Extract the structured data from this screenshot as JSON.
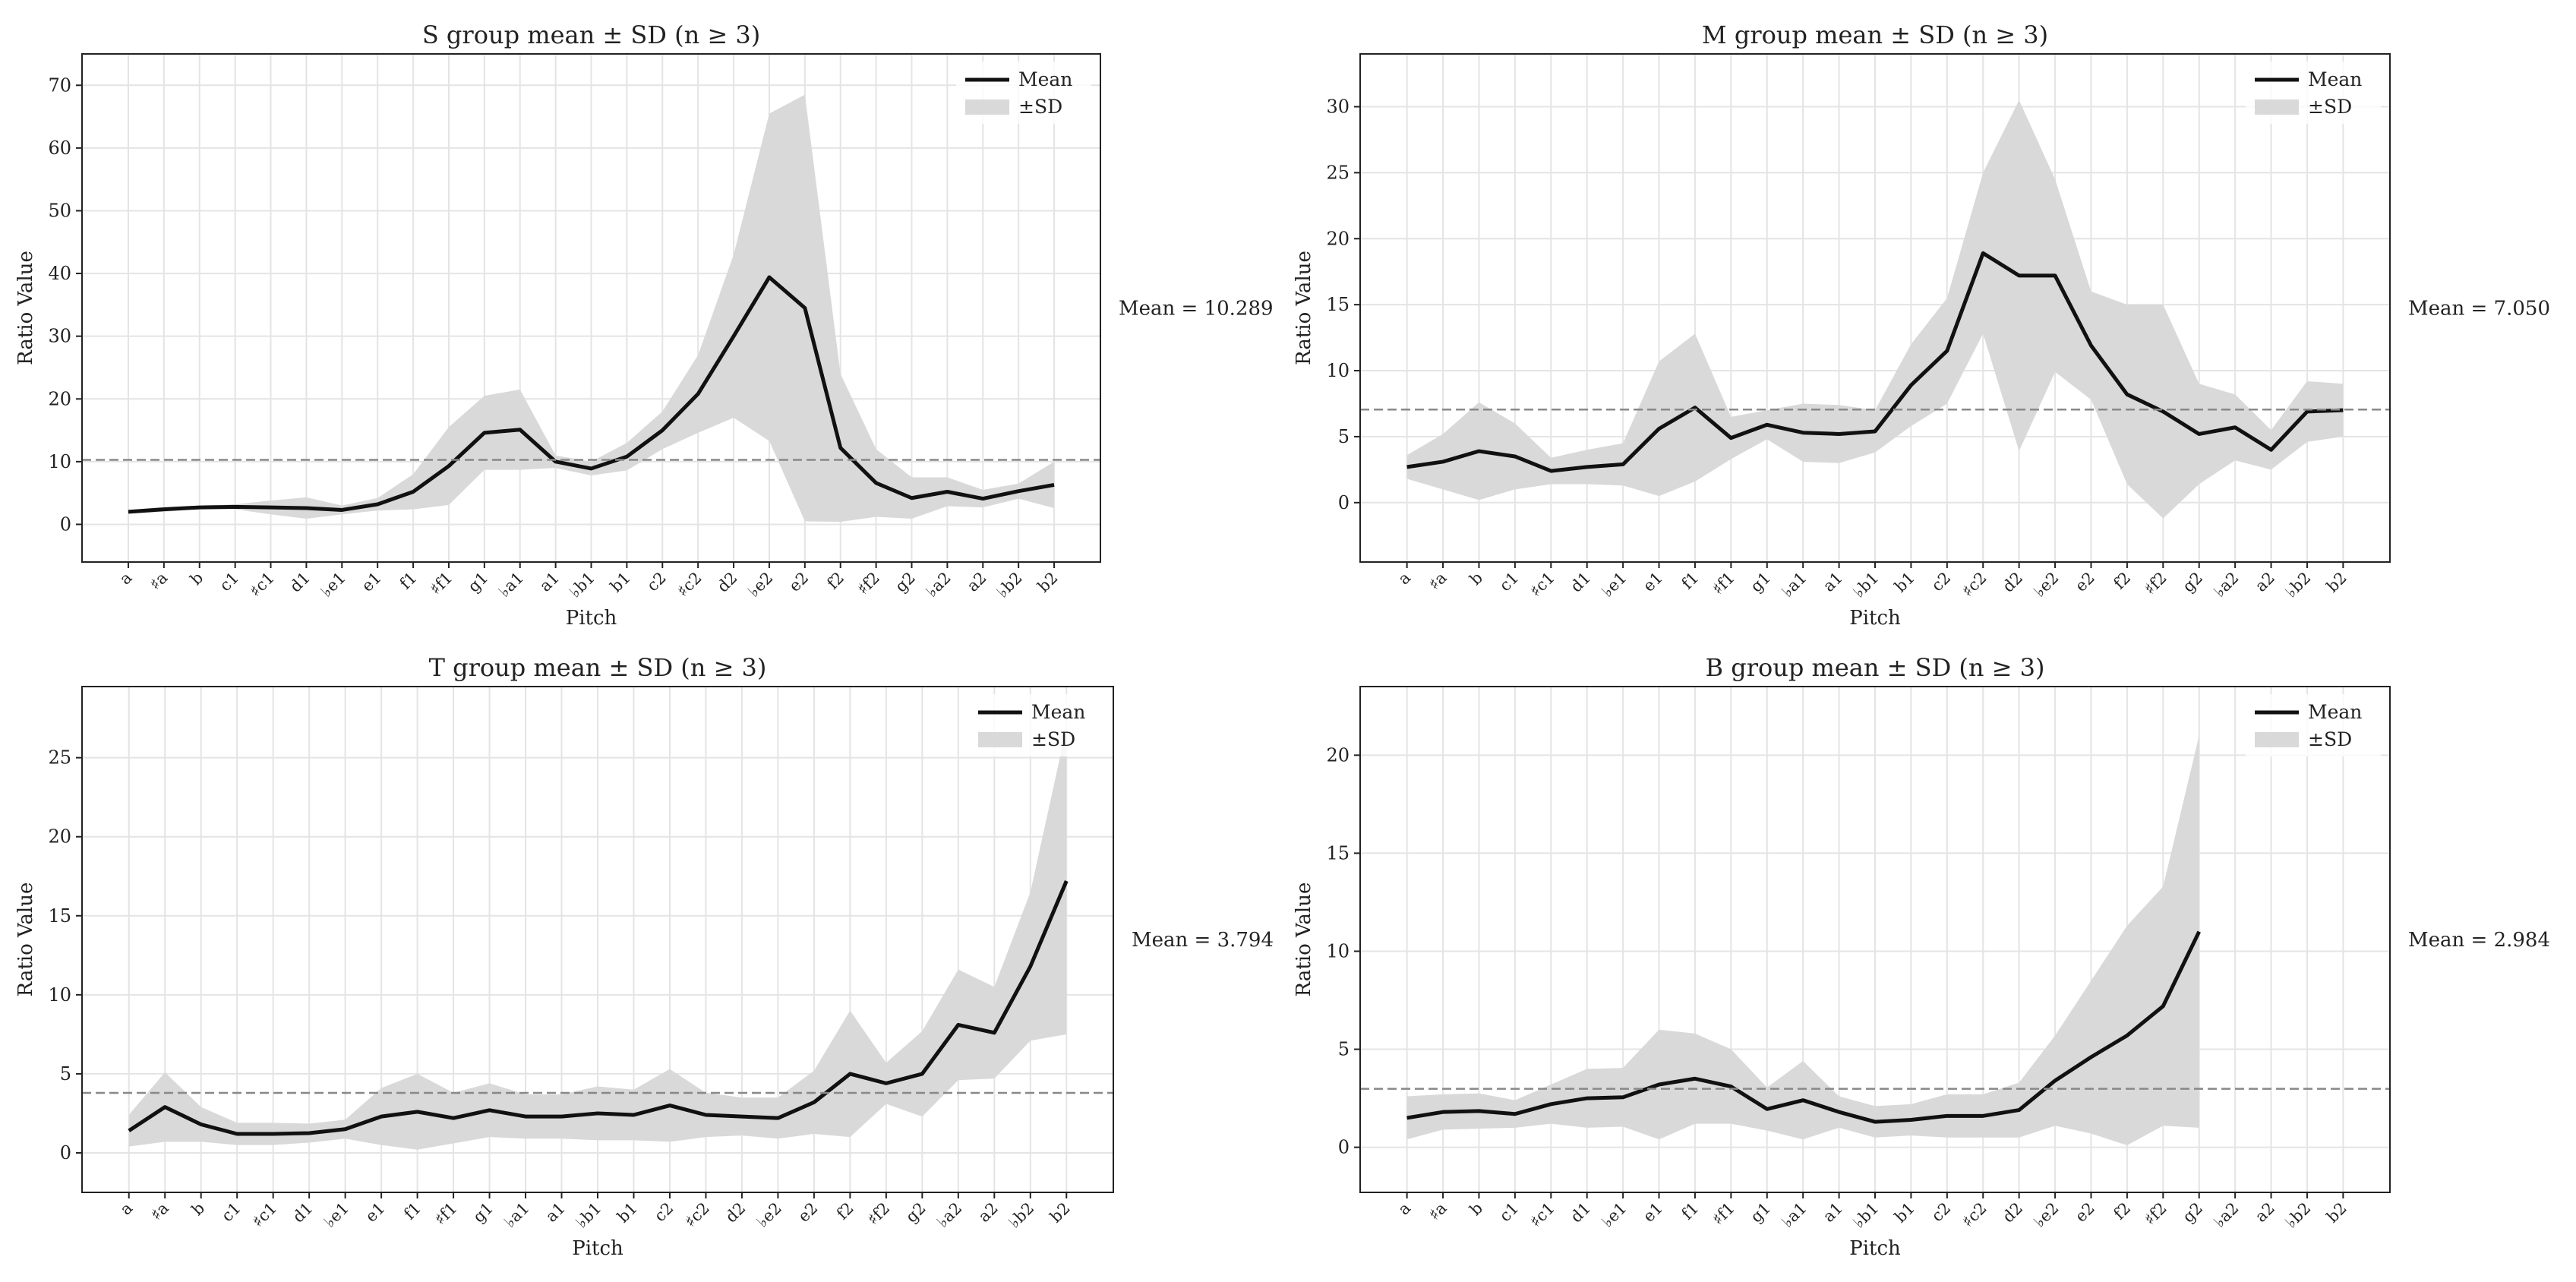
{
  "chart_data": [
    {
      "type": "line",
      "title": "S group mean ± SD (n ≥ 3)",
      "xlabel": "Pitch",
      "ylabel": "Ratio Value",
      "categories": [
        "a",
        "♯a",
        "b",
        "c1",
        "♯c1",
        "d1",
        "♭e1",
        "e1",
        "f1",
        "♯f1",
        "g1",
        "♭a1",
        "a1",
        "♭b1",
        "b1",
        "c2",
        "♯c2",
        "d2",
        "♭e2",
        "e2",
        "f2",
        "♯f2",
        "g2",
        "♭a2",
        "a2",
        "♭b2",
        "b2"
      ],
      "series": [
        {
          "name": "Mean",
          "color": "#111111",
          "values": [
            2.0,
            2.4,
            2.7,
            2.8,
            2.7,
            2.6,
            2.3,
            3.2,
            5.2,
            9.3,
            14.6,
            15.1,
            10.0,
            8.9,
            10.8,
            15.0,
            20.8,
            30.0,
            39.4,
            34.5,
            12.2,
            6.6,
            4.2,
            5.2,
            4.1,
            5.3,
            6.3
          ]
        },
        {
          "name": "±SD",
          "color": "#d9d9d9",
          "values": [
            0.3,
            0.4,
            0.3,
            0.4,
            1.1,
            1.7,
            0.7,
            1.0,
            2.8,
            6.2,
            5.9,
            6.4,
            1.0,
            1.1,
            2.2,
            3.0,
            6.2,
            13.0,
            26.1,
            34.0,
            11.8,
            5.4,
            3.3,
            2.3,
            1.4,
            1.2,
            3.7
          ]
        }
      ],
      "ylim": [
        -6,
        75
      ],
      "yticks": [
        0,
        10,
        20,
        30,
        40,
        50,
        60,
        70
      ],
      "grid": true,
      "legend": "upper right",
      "mean_line": {
        "value": 10.289,
        "label": "Mean = 10.289"
      }
    },
    {
      "type": "line",
      "title": "M group mean ± SD (n ≥ 3)",
      "xlabel": "Pitch",
      "ylabel": "Ratio Value",
      "categories": [
        "a",
        "♯a",
        "b",
        "c1",
        "♯c1",
        "d1",
        "♭e1",
        "e1",
        "f1",
        "♯f1",
        "g1",
        "♭a1",
        "a1",
        "♭b1",
        "b1",
        "c2",
        "♯c2",
        "d2",
        "♭e2",
        "e2",
        "f2",
        "♯f2",
        "g2",
        "♭a2",
        "a2",
        "♭b2",
        "b2"
      ],
      "series": [
        {
          "name": "Mean",
          "color": "#111111",
          "values": [
            2.7,
            3.1,
            3.9,
            3.5,
            2.4,
            2.7,
            2.9,
            5.6,
            7.2,
            4.9,
            5.9,
            5.3,
            5.2,
            5.4,
            8.9,
            11.5,
            18.9,
            17.2,
            17.2,
            11.9,
            8.2,
            6.9,
            5.2,
            5.7,
            4.0,
            6.9,
            7.0
          ]
        },
        {
          "name": "±SD",
          "color": "#d9d9d9",
          "values": [
            0.9,
            2.1,
            3.7,
            2.5,
            1.0,
            1.3,
            1.6,
            5.1,
            5.6,
            1.6,
            1.1,
            2.2,
            2.2,
            1.6,
            3.1,
            4.0,
            6.1,
            13.3,
            7.3,
            4.1,
            6.8,
            8.1,
            3.8,
            2.5,
            1.5,
            2.3,
            2.0
          ]
        }
      ],
      "ylim": [
        -4.5,
        34
      ],
      "yticks": [
        0,
        5,
        10,
        15,
        20,
        25,
        30
      ],
      "grid": true,
      "legend": "upper right",
      "mean_line": {
        "value": 7.05,
        "label": "Mean = 7.050"
      }
    },
    {
      "type": "line",
      "title": "T group mean ± SD (n ≥ 3)",
      "xlabel": "Pitch",
      "ylabel": "Ratio Value",
      "categories": [
        "a",
        "♯a",
        "b",
        "c1",
        "♯c1",
        "d1",
        "♭e1",
        "e1",
        "f1",
        "♯f1",
        "g1",
        "♭a1",
        "a1",
        "♭b1",
        "b1",
        "c2",
        "♯c2",
        "d2",
        "♭e2",
        "e2",
        "f2",
        "♯f2",
        "g2",
        "♭a2",
        "a2",
        "♭b2",
        "b2"
      ],
      "series": [
        {
          "name": "Mean",
          "color": "#111111",
          "values": [
            1.4,
            2.9,
            1.8,
            1.2,
            1.2,
            1.25,
            1.5,
            2.3,
            2.6,
            2.2,
            2.7,
            2.3,
            2.3,
            2.5,
            2.4,
            3.0,
            2.4,
            2.3,
            2.2,
            3.2,
            5.0,
            4.4,
            5.0,
            8.1,
            7.6,
            11.8,
            17.2
          ]
        },
        {
          "name": "±SD",
          "color": "#d9d9d9",
          "values": [
            1.0,
            2.2,
            1.1,
            0.7,
            0.7,
            0.6,
            0.6,
            1.8,
            2.4,
            1.6,
            1.7,
            1.4,
            1.4,
            1.7,
            1.6,
            2.3,
            1.4,
            1.2,
            1.3,
            2.0,
            4.0,
            1.3,
            2.7,
            3.5,
            2.9,
            4.7,
            9.7
          ]
        }
      ],
      "ylim": [
        -2.5,
        29.5
      ],
      "yticks": [
        0,
        5,
        10,
        15,
        20,
        25
      ],
      "grid": true,
      "legend": "upper right",
      "mean_line": {
        "value": 3.794,
        "label": "Mean = 3.794"
      }
    },
    {
      "type": "line",
      "title": "B group mean ± SD (n ≥ 3)",
      "xlabel": "Pitch",
      "ylabel": "Ratio Value",
      "categories": [
        "a",
        "♯a",
        "b",
        "c1",
        "♯c1",
        "d1",
        "♭e1",
        "e1",
        "f1",
        "♯f1",
        "g1",
        "♭a1",
        "a1",
        "♭b1",
        "b1",
        "c2",
        "♯c2",
        "d2",
        "♭e2",
        "e2",
        "f2",
        "♯f2",
        "g2",
        "♭a2",
        "a2",
        "♭b2",
        "b2"
      ],
      "series": [
        {
          "name": "Mean",
          "color": "#111111",
          "values": [
            1.5,
            1.8,
            1.85,
            1.7,
            2.2,
            2.5,
            2.55,
            3.2,
            3.5,
            3.1,
            1.95,
            2.4,
            1.8,
            1.3,
            1.4,
            1.6,
            1.6,
            1.9,
            3.4,
            4.6,
            5.7,
            7.2,
            11.0,
            null,
            null,
            null,
            null
          ]
        },
        {
          "name": "±SD",
          "color": "#d9d9d9",
          "values": [
            1.1,
            0.9,
            0.9,
            0.7,
            1.0,
            1.5,
            1.5,
            2.8,
            2.3,
            1.9,
            1.1,
            2.0,
            0.8,
            0.8,
            0.8,
            1.1,
            1.1,
            1.4,
            2.3,
            3.9,
            5.6,
            6.1,
            10.0,
            null,
            null,
            null,
            null
          ]
        }
      ],
      "ylim": [
        -2.3,
        23.5
      ],
      "yticks": [
        0,
        5,
        10,
        15,
        20
      ],
      "grid": true,
      "legend": "upper right",
      "mean_line": {
        "value": 2.984,
        "label": "Mean = 2.984"
      }
    }
  ]
}
